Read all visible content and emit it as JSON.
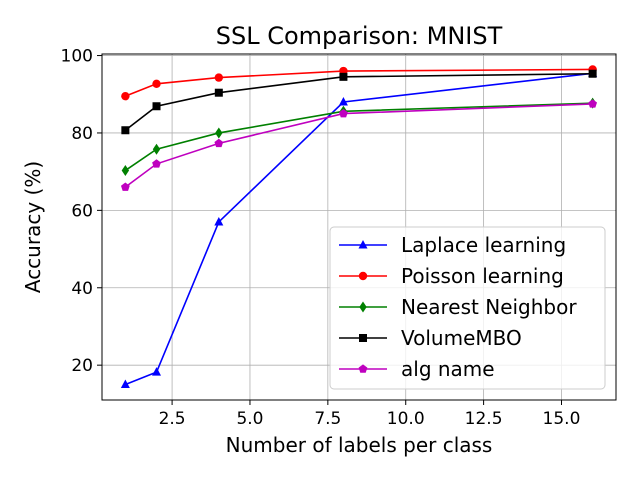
{
  "chart_data": {
    "type": "line",
    "title": "SSL Comparison: MNIST",
    "xlabel": "Number of labels per class",
    "ylabel": "Accuracy (%)",
    "xlim": [
      0.25,
      16.75
    ],
    "ylim": [
      11.0,
      100.4
    ],
    "xticks": [
      2.5,
      5.0,
      7.5,
      10.0,
      12.5,
      15.0
    ],
    "xtick_labels": [
      "2.5",
      "5.0",
      "7.5",
      "10.0",
      "12.5",
      "15.0"
    ],
    "yticks": [
      20,
      40,
      60,
      80,
      100
    ],
    "ytick_labels": [
      "20",
      "40",
      "60",
      "80",
      "100"
    ],
    "grid": true,
    "legend_position": "lower-right",
    "x": [
      1,
      2,
      4,
      8,
      16
    ],
    "series": [
      {
        "name": "Laplace learning",
        "color": "#0000ff",
        "marker": "triangle",
        "values": [
          15.0,
          18.2,
          57.0,
          88.0,
          95.4
        ]
      },
      {
        "name": "Poisson learning",
        "color": "#ff0000",
        "marker": "circle",
        "values": [
          89.5,
          92.7,
          94.3,
          96.0,
          96.4
        ]
      },
      {
        "name": "Nearest Neighbor",
        "color": "#008000",
        "marker": "diamond",
        "values": [
          70.3,
          75.8,
          80.0,
          85.6,
          87.7
        ]
      },
      {
        "name": "VolumeMBO",
        "color": "#000000",
        "marker": "square",
        "values": [
          80.7,
          86.9,
          90.4,
          94.5,
          95.3
        ]
      },
      {
        "name": "alg name",
        "color": "#bf00bf",
        "marker": "pentagon",
        "values": [
          66.0,
          72.0,
          77.3,
          85.0,
          87.5
        ]
      }
    ]
  }
}
